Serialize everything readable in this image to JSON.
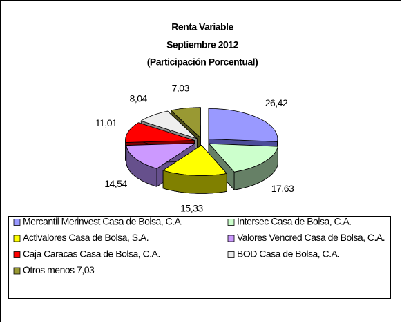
{
  "chart_data": {
    "type": "pie3d",
    "title": "Renta Variable",
    "subtitle": [
      "Septiembre 2012",
      "(Participación Porcentual)"
    ],
    "categories": [
      "Mercantil Merinvest Casa de Bolsa, C.A.",
      "Intersec Casa de Bolsa, C.A.",
      "Activalores Casa de Bolsa, S.A.",
      "Valores Vencred Casa de Bolsa, C.A.",
      "Caja Caracas Casa de Bolsa, C.A.",
      "BOD Casa de Bolsa, C.A.",
      "Otros menos  7,03"
    ],
    "values": [
      26.42,
      17.63,
      15.33,
      14.54,
      11.01,
      8.04,
      7.03
    ],
    "value_labels": [
      "26,42",
      "17,63",
      "15,33",
      "14,54",
      "11,01",
      "8,04",
      "7,03"
    ],
    "colors": [
      "#9999ff",
      "#ccffcc",
      "#ffff00",
      "#cc99ff",
      "#ff0000",
      "#eeeeee",
      "#999933"
    ],
    "side_colors": [
      "#4c4c99",
      "#668066",
      "#808000",
      "#66508c",
      "#800000",
      "#8c8c8c",
      "#4d4d1a"
    ],
    "legend": "bottom"
  }
}
